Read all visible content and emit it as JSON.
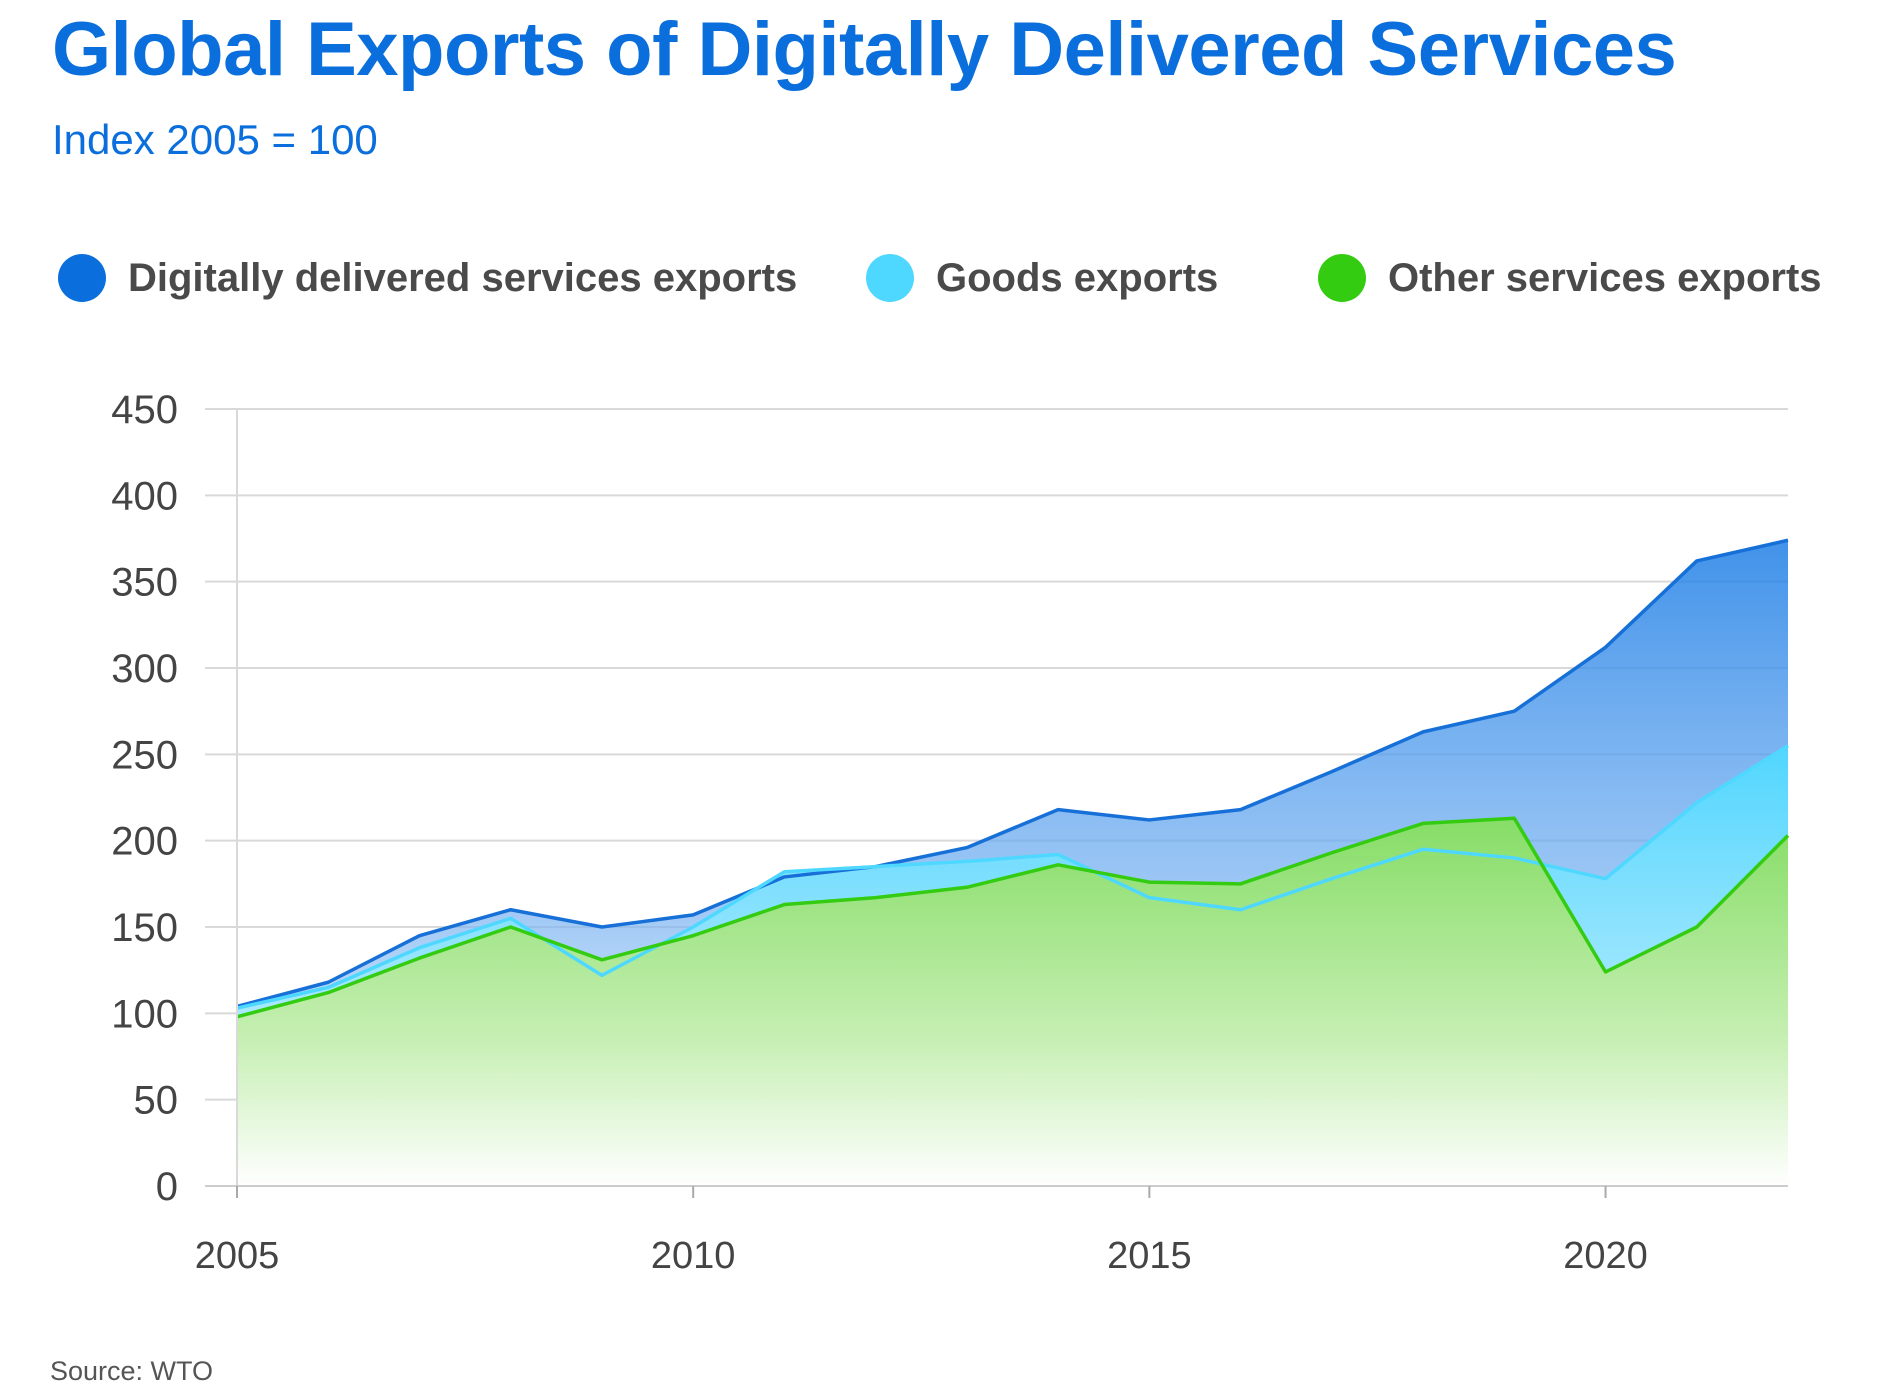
{
  "title": "Global Exports of Digitally Delivered Services",
  "subtitle": "Index 2005 = 100",
  "source": "Source: WTO",
  "legend": [
    {
      "label": "Digitally delivered services exports",
      "color": "#0a6fdc"
    },
    {
      "label": "Goods exports",
      "color": "#4fd8ff"
    },
    {
      "label": "Other services exports",
      "color": "#33cc11"
    }
  ],
  "chart_data": {
    "type": "area",
    "x": [
      2005,
      2006,
      2007,
      2008,
      2009,
      2010,
      2011,
      2012,
      2013,
      2014,
      2015,
      2016,
      2017,
      2018,
      2019,
      2020,
      2021,
      2022
    ],
    "x_ticks": [
      2005,
      2010,
      2015,
      2020
    ],
    "y_ticks": [
      0,
      50,
      100,
      150,
      200,
      250,
      300,
      350,
      400,
      450
    ],
    "ylim": [
      0,
      450
    ],
    "grid": true,
    "legend_position": "top",
    "series": [
      {
        "name": "Digitally delivered services exports",
        "color": "#0a6fdc",
        "values": [
          104,
          118,
          145,
          160,
          150,
          157,
          179,
          185,
          196,
          218,
          212,
          218,
          240,
          263,
          275,
          312,
          362,
          374
        ]
      },
      {
        "name": "Goods exports",
        "color": "#4fd8ff",
        "values": [
          103,
          115,
          138,
          155,
          122,
          150,
          182,
          185,
          188,
          192,
          167,
          160,
          178,
          195,
          190,
          178,
          222,
          255
        ]
      },
      {
        "name": "Other services exports",
        "color": "#33cc11",
        "values": [
          98,
          112,
          132,
          150,
          131,
          145,
          163,
          167,
          173,
          186,
          176,
          175,
          193,
          210,
          213,
          124,
          150,
          203
        ]
      }
    ]
  }
}
